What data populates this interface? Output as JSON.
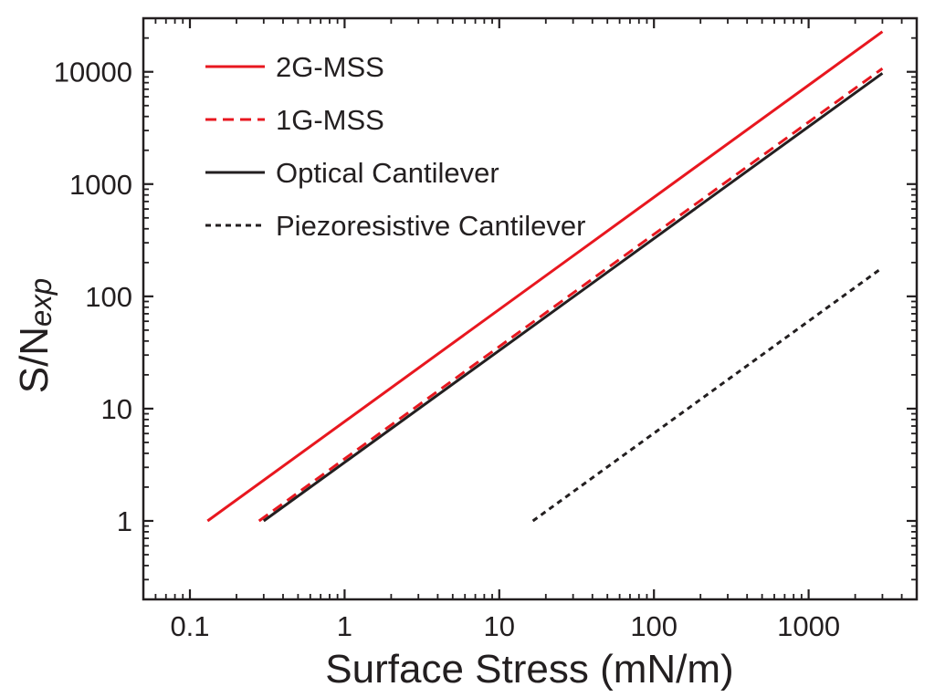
{
  "chart_data": {
    "type": "line",
    "scale": {
      "x": "log",
      "y": "log"
    },
    "xlabel": "Surface Stress (mN/m)",
    "ylabel_main": "S/N",
    "ylabel_sub": "exp",
    "xlim": [
      0.05,
      5000
    ],
    "ylim": [
      0.2,
      30000
    ],
    "xticks": [
      {
        "value": 0.1,
        "label": "0.1"
      },
      {
        "value": 1,
        "label": "1"
      },
      {
        "value": 10,
        "label": "10"
      },
      {
        "value": 100,
        "label": "100"
      },
      {
        "value": 1000,
        "label": "1000"
      }
    ],
    "yticks": [
      {
        "value": 1,
        "label": "1"
      },
      {
        "value": 10,
        "label": "10"
      },
      {
        "value": 100,
        "label": "100"
      },
      {
        "value": 1000,
        "label": "1000"
      },
      {
        "value": 10000,
        "label": "10000"
      }
    ],
    "legend_position": "top-left",
    "series": [
      {
        "name": "2G-MSS",
        "color": "#e8171f",
        "style": "solid",
        "x": [
          0.13,
          3000
        ],
        "y": [
          1,
          22800
        ]
      },
      {
        "name": "1G-MSS",
        "color": "#e8171f",
        "style": "dashed",
        "x": [
          0.28,
          3000
        ],
        "y": [
          1,
          10700
        ]
      },
      {
        "name": "Optical Cantilever",
        "color": "#231f20",
        "style": "solid",
        "x": [
          0.3,
          3000
        ],
        "y": [
          1,
          9700
        ]
      },
      {
        "name": "Piezoresistive Cantilever",
        "color": "#231f20",
        "style": "dotted",
        "x": [
          16.5,
          3000
        ],
        "y": [
          1,
          180
        ]
      }
    ]
  }
}
